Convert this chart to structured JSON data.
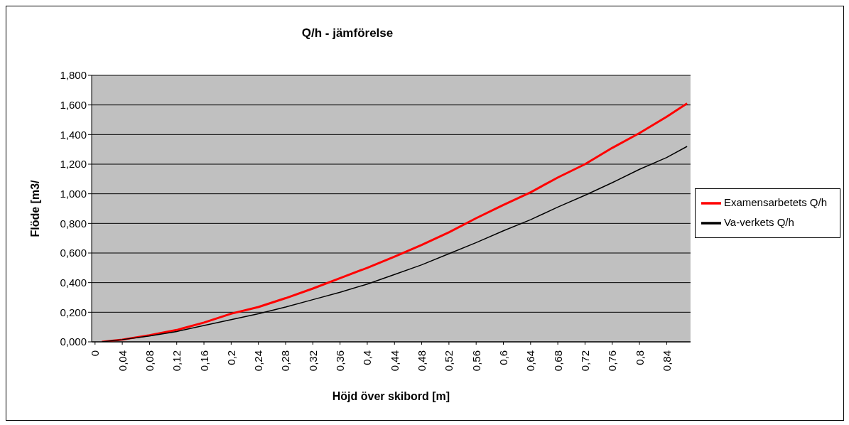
{
  "chart_data": {
    "type": "line",
    "title": "Q/h - jämförelse",
    "xlabel": "Höjd över skibord [m]",
    "ylabel": "Flöde [m3/",
    "x": [
      0.01,
      0.04,
      0.08,
      0.12,
      0.16,
      0.2,
      0.24,
      0.28,
      0.32,
      0.36,
      0.4,
      0.44,
      0.48,
      0.52,
      0.56,
      0.6,
      0.64,
      0.68,
      0.72,
      0.76,
      0.8,
      0.84,
      0.87
    ],
    "series": [
      {
        "name": "Examensarbetets Q/h",
        "color": "#ff0000",
        "values": [
          0,
          0.015,
          0.045,
          0.08,
          0.13,
          0.19,
          0.235,
          0.295,
          0.36,
          0.43,
          0.5,
          0.575,
          0.655,
          0.74,
          0.835,
          0.925,
          1.01,
          1.11,
          1.2,
          1.31,
          1.41,
          1.52,
          1.61
        ]
      },
      {
        "name": "Va-verkets Q/h",
        "color": "#000000",
        "values": [
          0,
          0.015,
          0.04,
          0.07,
          0.11,
          0.15,
          0.19,
          0.235,
          0.285,
          0.335,
          0.39,
          0.455,
          0.52,
          0.595,
          0.67,
          0.75,
          0.825,
          0.91,
          0.99,
          1.075,
          1.165,
          1.245,
          1.32
        ]
      }
    ],
    "xlim": [
      -0.005,
      0.875
    ],
    "xticks": [
      0,
      {
        "value": 0.04,
        "label": "0,04"
      },
      {
        "value": 0.08,
        "label": "0,08"
      },
      {
        "value": 0.12,
        "label": "0,12"
      },
      {
        "value": 0.16,
        "label": "0,16"
      },
      {
        "value": 0.2,
        "label": "0,2"
      },
      {
        "value": 0.24,
        "label": "0,24"
      },
      {
        "value": 0.28,
        "label": "0,28"
      },
      {
        "value": 0.32,
        "label": "0,32"
      },
      {
        "value": 0.36,
        "label": "0,36"
      },
      {
        "value": 0.4,
        "label": "0,4"
      },
      {
        "value": 0.44,
        "label": "0,44"
      },
      {
        "value": 0.48,
        "label": "0,48"
      },
      {
        "value": 0.52,
        "label": "0,52"
      },
      {
        "value": 0.56,
        "label": "0,56"
      },
      {
        "value": 0.6,
        "label": "0,6"
      },
      {
        "value": 0.64,
        "label": "0,64"
      },
      {
        "value": 0.68,
        "label": "0,68"
      },
      {
        "value": 0.72,
        "label": "0,72"
      },
      {
        "value": 0.76,
        "label": "0,76"
      },
      {
        "value": 0.8,
        "label": "0,8"
      },
      {
        "value": 0.84,
        "label": "0,84"
      }
    ],
    "ylim": [
      0,
      1.8
    ],
    "yticks": [
      {
        "value": 0,
        "label": "0,000"
      },
      {
        "value": 0.2,
        "label": "0,200"
      },
      {
        "value": 0.4,
        "label": "0,400"
      },
      {
        "value": 0.6,
        "label": "0,600"
      },
      {
        "value": 0.8,
        "label": "0,800"
      },
      {
        "value": 1,
        "label": "1,000"
      },
      {
        "value": 1.2,
        "label": "1,200"
      },
      {
        "value": 1.4,
        "label": "1,400"
      },
      {
        "value": 1.6,
        "label": "1,600"
      },
      {
        "value": 1.8,
        "label": "1,800"
      }
    ],
    "grid": "y",
    "legend": "right",
    "marker": "none",
    "line_style": "solid"
  }
}
